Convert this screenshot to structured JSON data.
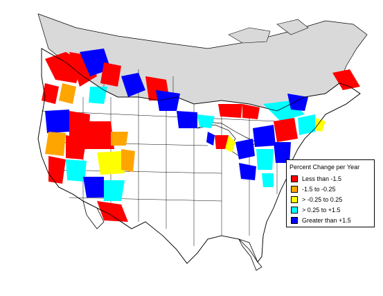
{
  "legend": {
    "title": "Percent Change per Year",
    "items": [
      {
        "label": "Less than -1.5",
        "color": "#ff0000"
      },
      {
        "label": "-1.5 to -0.25",
        "color": "#ffa500"
      },
      {
        "label": "> -0.25 to 0.25",
        "color": "#ffff00"
      },
      {
        "label": "> 0.25 to +1.5",
        "color": "#00ffff"
      },
      {
        "label": "Greater than +1.5",
        "color": "#0000ff"
      }
    ]
  },
  "colors": {
    "no_data_region": "#d9d9d9",
    "land": "#ffffff",
    "boundary": "#000000"
  }
}
